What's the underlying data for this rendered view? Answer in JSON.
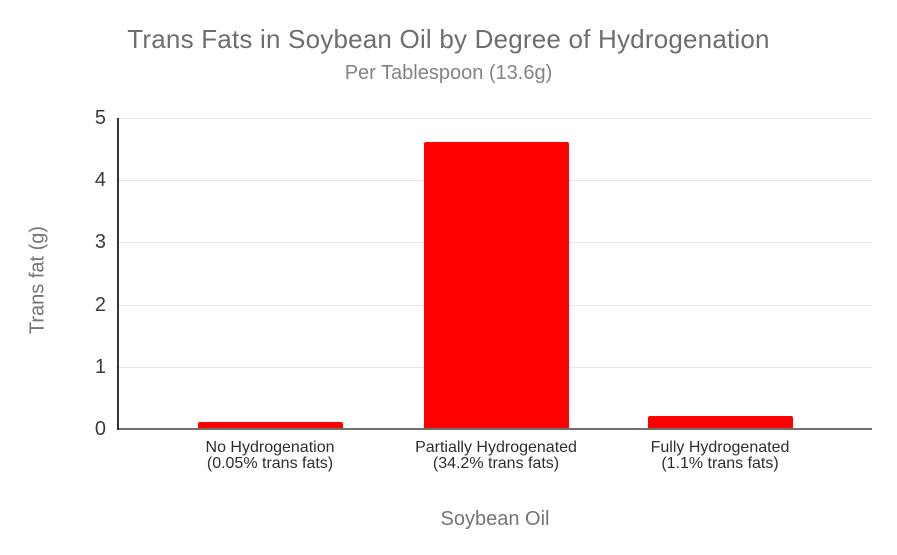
{
  "colors": {
    "bar": "#ff0000",
    "title": "#6e6e6e",
    "subtitle": "#848484",
    "axis_title": "#757575",
    "tick_label": "#3c3c3c",
    "category_label": "#2e2e2e",
    "gridline": "#e6e6e6",
    "baseline": "#6e6e6e",
    "y_axis_line": "#333333",
    "background": "#ffffff"
  },
  "chart_data": {
    "type": "bar",
    "title": "Trans Fats in Soybean Oil by Degree of Hydrogenation",
    "subtitle": "Per Tablespoon (13.6g)",
    "xlabel": "Soybean Oil",
    "ylabel": "Trans fat (g)",
    "categories": [
      "No Hydrogenation (0.05% trans fats)",
      "Partially Hydrogenated (34.2% trans fats)",
      "Fully Hydrogenated (1.1% trans fats)"
    ],
    "category_label_lines": [
      [
        "No Hydrogenation",
        "(0.05% trans fats)"
      ],
      [
        "Partially Hydrogenated",
        "(34.2% trans fats)"
      ],
      [
        "Fully Hydrogenated",
        "(1.1% trans fats)"
      ]
    ],
    "values": [
      0.1,
      4.6,
      0.2
    ],
    "ylim": [
      0,
      5
    ],
    "yticks": [
      0,
      1,
      2,
      3,
      4,
      5
    ],
    "grid": true,
    "legend": "none",
    "series_color": "#ff0000"
  }
}
